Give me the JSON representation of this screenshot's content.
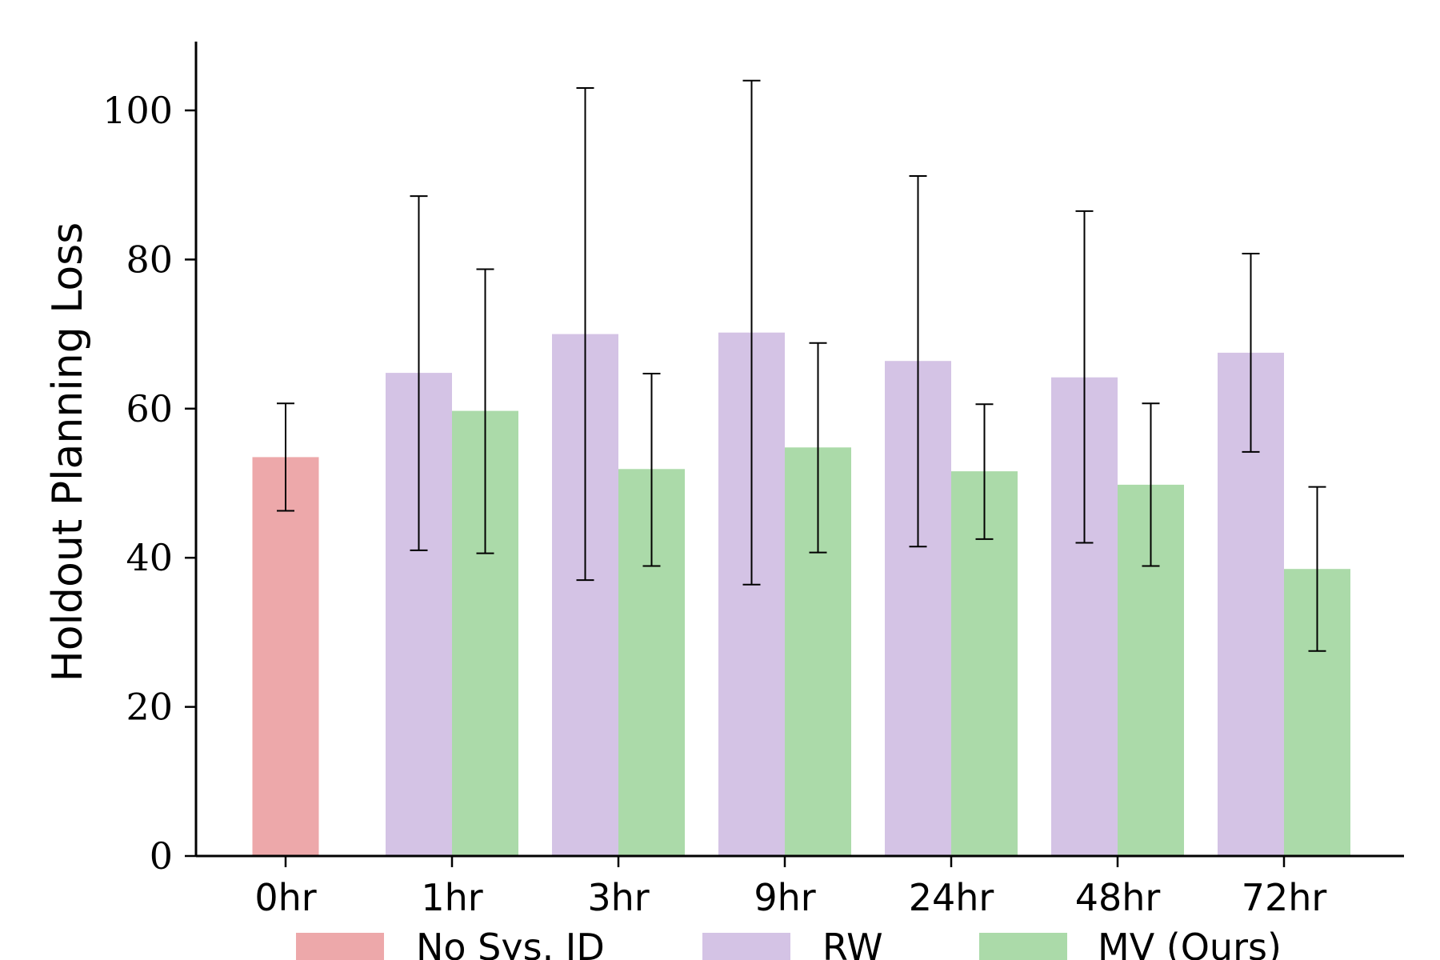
{
  "chart_data": {
    "type": "bar",
    "title": "",
    "xlabel": "",
    "ylabel": "Holdout Planning Loss",
    "categories": [
      "0hr",
      "1hr",
      "3hr",
      "9hr",
      "24hr",
      "48hr",
      "72hr"
    ],
    "ylim": [
      0,
      109
    ],
    "yticks": [
      0,
      20,
      40,
      60,
      80,
      100
    ],
    "grid": false,
    "legend_position": "bottom-center",
    "series": [
      {
        "name": "No Sys. ID",
        "color": "#eda8aa",
        "values": [
          53.5,
          null,
          null,
          null,
          null,
          null,
          null
        ],
        "error_low": [
          46.3,
          null,
          null,
          null,
          null,
          null,
          null
        ],
        "error_high": [
          60.7,
          null,
          null,
          null,
          null,
          null,
          null
        ]
      },
      {
        "name": "RW",
        "color": "#d4c3e5",
        "values": [
          null,
          64.8,
          70.0,
          70.2,
          66.4,
          64.2,
          67.5
        ],
        "error_low": [
          null,
          41.0,
          37.0,
          36.4,
          41.5,
          42.0,
          54.2
        ],
        "error_high": [
          null,
          88.5,
          103.0,
          104.0,
          91.2,
          86.5,
          80.8
        ]
      },
      {
        "name": "MV (Ours)",
        "color": "#abdaa9",
        "values": [
          null,
          59.7,
          51.9,
          54.8,
          51.6,
          49.8,
          38.5
        ],
        "error_low": [
          null,
          40.6,
          38.9,
          40.7,
          42.5,
          38.9,
          27.5
        ],
        "error_high": [
          null,
          78.7,
          64.7,
          68.8,
          60.6,
          60.7,
          49.5
        ]
      }
    ]
  }
}
